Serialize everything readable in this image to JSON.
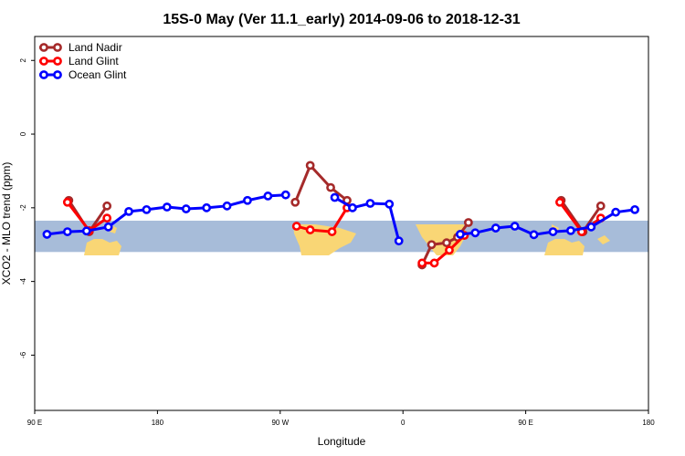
{
  "chart_data": {
    "type": "line",
    "title": "15S-0 May (Ver 11.1_early)   2014-09-06 to 2018-12-31",
    "xlabel": "Longitude",
    "ylabel": "XCO2 - MLO trend (ppm)",
    "xlim": [
      90,
      540
    ],
    "ylim": [
      -7.5,
      2.65
    ],
    "x_ticks": [
      {
        "value": 90,
        "label": "90 E"
      },
      {
        "value": 180,
        "label": "180"
      },
      {
        "value": 270,
        "label": "90 W"
      },
      {
        "value": 360,
        "label": "0"
      },
      {
        "value": 450,
        "label": "90 E"
      },
      {
        "value": 540,
        "label": "180"
      }
    ],
    "y_ticks": [
      {
        "value": 2,
        "label": "2"
      },
      {
        "value": 0,
        "label": "0"
      },
      {
        "value": -2,
        "label": "-2"
      },
      {
        "value": -4,
        "label": "-4"
      },
      {
        "value": -6,
        "label": "-6"
      }
    ],
    "band": {
      "y_from": -3.2,
      "y_to": -2.35,
      "color": "#a7bcd9",
      "land_color": "#f9d675"
    },
    "legend": {
      "position": "top-left"
    },
    "series": [
      {
        "name": "Land Nadir",
        "color": "#a52a2a",
        "segments": [
          [
            [
              115,
              -1.8
            ],
            [
              130,
              -2.65
            ],
            [
              143,
              -1.95
            ]
          ],
          [
            [
              281,
              -1.85
            ],
            [
              292,
              -0.85
            ],
            [
              307,
              -1.45
            ],
            [
              319,
              -1.8
            ]
          ],
          [
            [
              374,
              -3.55
            ],
            [
              381,
              -3.0
            ],
            [
              392,
              -2.95
            ],
            [
              400,
              -2.8
            ],
            [
              408,
              -2.4
            ]
          ],
          [
            [
              476,
              -1.8
            ],
            [
              492,
              -2.65
            ],
            [
              505,
              -1.95
            ]
          ]
        ]
      },
      {
        "name": "Land Glint",
        "color": "#ff0000",
        "segments": [
          [
            [
              114,
              -1.85
            ],
            [
              130,
              -2.62
            ],
            [
              143,
              -2.28
            ]
          ],
          [
            [
              282,
              -2.5
            ],
            [
              292,
              -2.6
            ],
            [
              308,
              -2.65
            ],
            [
              319,
              -2.0
            ]
          ],
          [
            [
              374,
              -3.5
            ],
            [
              383,
              -3.5
            ],
            [
              394,
              -3.15
            ],
            [
              405,
              -2.75
            ]
          ],
          [
            [
              475,
              -1.85
            ],
            [
              491,
              -2.65
            ],
            [
              505,
              -2.28
            ]
          ]
        ]
      },
      {
        "name": "Ocean Glint",
        "color": "#0000ff",
        "segments": [
          [
            [
              99,
              -2.72
            ],
            [
              114,
              -2.65
            ],
            [
              128,
              -2.63
            ],
            [
              144,
              -2.52
            ],
            [
              159,
              -2.1
            ],
            [
              172,
              -2.05
            ],
            [
              187,
              -1.98
            ],
            [
              201,
              -2.03
            ],
            [
              216,
              -2.0
            ],
            [
              231,
              -1.95
            ],
            [
              246,
              -1.8
            ],
            [
              261,
              -1.68
            ],
            [
              274,
              -1.65
            ]
          ],
          [
            [
              310,
              -1.72
            ],
            [
              323,
              -2.0
            ],
            [
              336,
              -1.88
            ],
            [
              350,
              -1.9
            ],
            [
              357,
              -2.9
            ]
          ],
          [
            [
              402,
              -2.72
            ],
            [
              413,
              -2.68
            ],
            [
              428,
              -2.55
            ],
            [
              442,
              -2.5
            ],
            [
              456,
              -2.73
            ],
            [
              470,
              -2.65
            ],
            [
              483,
              -2.62
            ],
            [
              498,
              -2.52
            ],
            [
              516,
              -2.12
            ],
            [
              530,
              -2.05
            ]
          ]
        ]
      }
    ]
  }
}
